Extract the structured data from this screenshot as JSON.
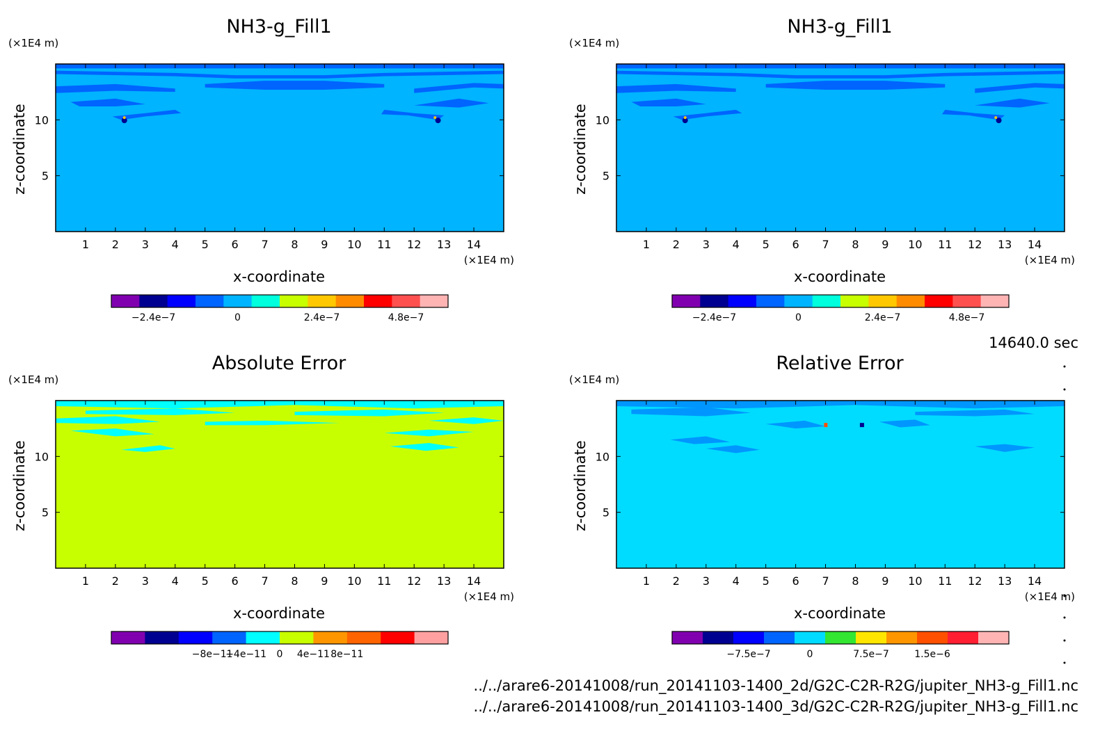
{
  "time_label": "14640.0 sec",
  "files": [
    "../../arare6-20141008/run_20141103-1400_2d/G2C-C2R-R2G/jupiter_NH3-g_Fill1.nc",
    "../../arare6-20141008/run_20141103-1400_3d/G2C-C2R-R2G/jupiter_NH3-g_Fill1.nc"
  ],
  "colors": {
    "ramp": [
      "#8000b0",
      "#000090",
      "#0000ff",
      "#0064ff",
      "#00b4ff",
      "#00ffdc",
      "#c8ff00",
      "#ffc800",
      "#ff8c00",
      "#ff4600",
      "#ff0000",
      "#ff5050",
      "#ffb4b4"
    ]
  },
  "chart_data": [
    {
      "type": "heatmap",
      "title": "NH3-g_Fill1",
      "xlabel": "x-coordinate",
      "ylabel": "z-coordinate",
      "x_unit": "(×1E4 m)",
      "z_unit": "(×1E4 m)",
      "xlim": [
        0,
        15
      ],
      "zlim": [
        0,
        15
      ],
      "x_ticks": [
        1,
        2,
        3,
        4,
        5,
        6,
        7,
        8,
        9,
        10,
        11,
        12,
        13,
        14
      ],
      "z_ticks": [
        5,
        10
      ],
      "field": "background ~0 (#00b4ff) with a layer of small negative values (#0064ff) near the top between z = 12 and 15; small extrema near (2.3, 10) and (12.8, 10)",
      "colorbar": {
        "colors": [
          "#8000b0",
          "#000090",
          "#0000ff",
          "#0064ff",
          "#00b4ff",
          "#00ffdc",
          "#c8ff00",
          "#ffc800",
          "#ff8c00",
          "#ff0000",
          "#ff5050",
          "#ffb4b4"
        ],
        "tick_labels": [
          "−2.4e−7",
          "0",
          "2.4e−7",
          "4.8e−7"
        ],
        "tick_values": [
          -2.4e-07,
          0,
          2.4e-07,
          4.8e-07
        ]
      }
    },
    {
      "type": "heatmap",
      "title": "NH3-g_Fill1",
      "xlabel": "x-coordinate",
      "ylabel": "z-coordinate",
      "x_unit": "(×1E4 m)",
      "z_unit": "(×1E4 m)",
      "xlim": [
        0,
        15
      ],
      "zlim": [
        0,
        15
      ],
      "x_ticks": [
        1,
        2,
        3,
        4,
        5,
        6,
        7,
        8,
        9,
        10,
        11,
        12,
        13,
        14
      ],
      "z_ticks": [
        5,
        10
      ],
      "field": "same pattern as the first panel",
      "colorbar": {
        "colors": [
          "#8000b0",
          "#000090",
          "#0000ff",
          "#0064ff",
          "#00b4ff",
          "#00ffdc",
          "#c8ff00",
          "#ffc800",
          "#ff8c00",
          "#ff0000",
          "#ff5050",
          "#ffb4b4"
        ],
        "tick_labels": [
          "−2.4e−7",
          "0",
          "2.4e−7",
          "4.8e−7"
        ],
        "tick_values": [
          -2.4e-07,
          0,
          2.4e-07,
          4.8e-07
        ]
      }
    },
    {
      "type": "heatmap",
      "title": "Absolute Error",
      "xlabel": "x-coordinate",
      "ylabel": "z-coordinate",
      "x_unit": "(×1E4 m)",
      "z_unit": "(×1E4 m)",
      "xlim": [
        0,
        15
      ],
      "zlim": [
        0,
        15
      ],
      "x_ticks": [
        1,
        2,
        3,
        4,
        5,
        6,
        7,
        8,
        9,
        10,
        11,
        12,
        13,
        14
      ],
      "z_ticks": [
        5,
        10
      ],
      "field": "background ~0 (#c8ff00) with small negative patches (#00ffff) near the top between z = 11 and 15",
      "colorbar": {
        "colors": [
          "#8000b0",
          "#000090",
          "#0000ff",
          "#0064ff",
          "#00ffff",
          "#c8ff00",
          "#ff9600",
          "#ff6400",
          "#ff0000",
          "#ffa0a0"
        ],
        "tick_labels": [
          "−8e−11",
          "−4e−11",
          "0",
          "4e−11",
          "8e−11"
        ],
        "tick_values": [
          -8e-11,
          -4e-11,
          0,
          4e-11,
          8e-11
        ]
      }
    },
    {
      "type": "heatmap",
      "title": "Relative Error",
      "xlabel": "x-coordinate",
      "ylabel": "z-coordinate",
      "x_unit": "(×1E4 m)",
      "z_unit": "(×1E4 m)",
      "xlim": [
        0,
        15
      ],
      "zlim": [
        0,
        15
      ],
      "x_ticks": [
        1,
        2,
        3,
        4,
        5,
        6,
        7,
        8,
        9,
        10,
        11,
        12,
        13,
        14
      ],
      "z_ticks": [
        5,
        10
      ],
      "field": "background ~0 (#00dcff) with negative patches (#0096ff) near the top; small extrema near (7.0, 12.8) and (8.2, 12.8)",
      "colorbar": {
        "colors": [
          "#8000b0",
          "#000090",
          "#0000ff",
          "#0064ff",
          "#00dcff",
          "#32e632",
          "#ffe600",
          "#ff9600",
          "#ff5000",
          "#ff1e32",
          "#ffb4b4"
        ],
        "tick_labels": [
          "−7.5e−7",
          "0",
          "7.5e−7",
          "1.5e−6"
        ],
        "tick_values": [
          -7.5e-07,
          0,
          7.5e-07,
          1.5e-06
        ]
      }
    }
  ]
}
